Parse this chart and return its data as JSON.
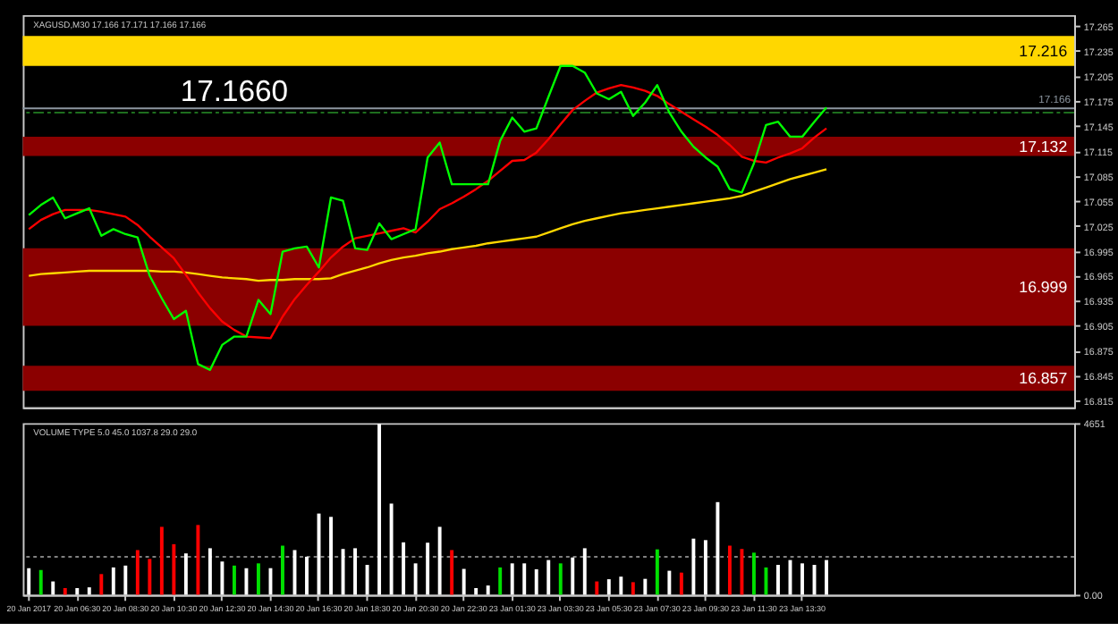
{
  "chart_data": [
    {
      "type": "line",
      "title": "XAGUSD,M30 17.166 17.171 17.166 17.166",
      "annotations": [
        "17.1660"
      ],
      "categories": [
        null,
        null,
        null,
        null,
        null,
        null,
        null,
        null,
        null,
        null,
        null,
        null,
        null,
        null,
        null,
        null,
        null,
        null,
        null,
        null,
        null,
        null,
        null,
        null,
        null,
        null,
        null,
        null,
        null,
        null,
        null,
        null,
        null,
        null,
        null,
        null,
        null,
        null,
        null,
        null,
        null,
        null,
        null,
        null,
        null,
        null,
        null,
        null,
        null,
        null,
        null,
        null,
        null,
        null,
        null,
        null,
        null,
        null,
        null,
        null,
        null,
        null,
        null,
        null,
        null,
        null,
        null,
        null,
        null,
        null,
        null,
        null,
        null,
        null,
        null,
        null,
        null,
        null,
        null,
        null,
        null,
        null,
        null,
        null,
        null,
        null,
        null
      ],
      "ylim": [
        16.807,
        17.278
      ],
      "yticks": [
        16.815,
        16.845,
        16.875,
        16.905,
        16.935,
        16.965,
        16.995,
        17.025,
        17.055,
        17.085,
        17.115,
        17.145,
        17.175,
        17.205,
        17.235,
        17.265
      ],
      "tick_labels": "y",
      "grid": false,
      "legend": false,
      "series": [
        {
          "color": "#ffd700",
          "values": [
            16.965,
            16.967,
            16.968,
            16.969,
            16.97,
            16.971,
            16.971,
            16.971,
            16.971,
            16.971,
            16.971,
            16.97,
            16.97,
            16.969,
            16.967,
            16.965,
            16.963,
            16.962,
            16.961,
            16.959,
            16.96,
            16.96,
            16.961,
            16.961,
            16.961,
            16.962,
            16.967,
            16.971,
            16.975,
            16.98,
            16.984,
            16.987,
            16.989,
            16.992,
            16.994,
            16.997,
            16.999,
            17.001,
            17.004,
            17.006,
            17.008,
            17.01,
            17.012,
            17.017,
            17.022,
            17.027,
            17.031,
            17.034,
            17.037,
            17.04,
            17.042,
            17.044,
            17.046,
            17.048,
            17.05,
            17.052,
            17.054,
            17.056,
            17.058,
            17.061,
            17.066,
            17.071,
            17.076,
            17.081,
            17.085,
            17.089,
            17.093,
            null,
            null,
            null,
            null,
            null,
            null,
            null,
            null,
            null,
            null,
            null,
            null,
            null,
            null,
            null,
            null,
            null,
            null,
            null,
            null
          ]
        },
        {
          "color": "#ff0000",
          "values": [
            17.021,
            17.032,
            17.039,
            17.044,
            17.044,
            17.044,
            17.042,
            17.039,
            17.036,
            17.026,
            17.012,
            16.999,
            16.986,
            16.966,
            16.945,
            16.926,
            16.91,
            16.9,
            16.892,
            16.891,
            16.89,
            16.916,
            16.937,
            16.954,
            16.97,
            16.987,
            17.0,
            17.01,
            17.013,
            17.016,
            17.019,
            17.022,
            17.017,
            17.03,
            17.045,
            17.052,
            17.06,
            17.069,
            17.079,
            17.091,
            17.103,
            17.104,
            17.113,
            17.129,
            17.147,
            17.164,
            17.175,
            17.185,
            17.19,
            17.194,
            17.191,
            17.187,
            17.181,
            17.171,
            17.162,
            17.153,
            17.144,
            17.134,
            17.122,
            17.108,
            17.103,
            17.101,
            17.107,
            17.112,
            17.118,
            17.131,
            17.142,
            null,
            null,
            null,
            null,
            null,
            null,
            null,
            null,
            null,
            null,
            null,
            null,
            null,
            null,
            null,
            null,
            null,
            null,
            null,
            null
          ]
        },
        {
          "color": "#00ff00",
          "values": [
            17.038,
            17.05,
            17.059,
            17.034,
            17.04,
            17.046,
            17.013,
            17.021,
            17.015,
            17.011,
            16.965,
            16.938,
            16.913,
            16.923,
            16.859,
            16.852,
            16.882,
            16.892,
            16.892,
            16.936,
            16.919,
            16.994,
            16.998,
            17.0,
            16.975,
            17.059,
            17.055,
            16.998,
            16.996,
            17.028,
            17.009,
            17.015,
            17.021,
            17.107,
            17.125,
            17.075,
            17.075,
            17.075,
            17.075,
            17.127,
            17.155,
            17.138,
            17.142,
            17.18,
            17.217,
            17.217,
            17.209,
            17.184,
            17.177,
            17.186,
            17.157,
            17.173,
            17.194,
            17.161,
            17.138,
            17.12,
            17.107,
            17.096,
            17.069,
            17.065,
            17.1,
            17.146,
            17.15,
            17.132,
            17.132,
            17.15,
            17.167,
            null,
            null,
            null,
            null,
            null,
            null,
            null,
            null,
            null,
            null,
            null,
            null,
            null,
            null,
            null,
            null,
            null,
            null,
            null,
            null
          ]
        }
      ],
      "ref_lines": [
        {
          "axis": "y",
          "value": 17.166,
          "label": "17.166",
          "color": "#8c96a0",
          "line_style": "solid"
        },
        {
          "axis": "y",
          "value": 17.161,
          "color": "#1e6e1e",
          "line_style": "dashed"
        }
      ],
      "bands": [
        {
          "axis": "y",
          "from": 17.217,
          "to": 17.253,
          "label": "17.216",
          "color": "#ffd700"
        },
        {
          "axis": "y",
          "from": 17.109,
          "to": 17.132,
          "label": "17.132",
          "color": "#8b0000"
        },
        {
          "axis": "y",
          "from": 16.905,
          "to": 16.998,
          "label": "16.999",
          "color": "#8b0000"
        },
        {
          "axis": "y",
          "from": 16.827,
          "to": 16.857,
          "label": "16.857",
          "color": "#8b0000"
        }
      ]
    },
    {
      "type": "bar",
      "title": "VOLUME TYPE 5.0 45.0 1037.8 29.0 29.0",
      "categories": [
        "20 Jan 2017",
        null,
        null,
        null,
        "20 Jan 06:30",
        null,
        null,
        null,
        "20 Jan 08:30",
        null,
        null,
        null,
        "20 Jan 10:30",
        null,
        null,
        null,
        "20 Jan 12:30",
        null,
        null,
        null,
        "20 Jan 14:30",
        null,
        null,
        null,
        "20 Jan 16:30",
        null,
        null,
        null,
        "20 Jan 18:30",
        null,
        null,
        null,
        "20 Jan 20:30",
        null,
        null,
        null,
        "20 Jan 22:30",
        null,
        null,
        null,
        "23 Jan 01:30",
        null,
        null,
        null,
        "23 Jan 03:30",
        null,
        null,
        null,
        "23 Jan 05:30",
        null,
        null,
        null,
        "23 Jan 07:30",
        null,
        null,
        null,
        "23 Jan 09:30",
        null,
        null,
        null,
        "23 Jan 11:30",
        null,
        null,
        null,
        "23 Jan 13:30",
        null,
        null,
        null,
        null,
        null,
        null,
        null,
        null,
        null,
        null,
        null,
        null,
        null,
        null,
        null,
        null,
        null,
        null,
        null,
        null,
        null,
        null
      ],
      "ylim": [
        0,
        4651
      ],
      "yticks": [
        {
          "value": 0,
          "label": "0.00"
        },
        4651
      ],
      "grid": false,
      "legend": false,
      "values": [
        720,
        670,
        360,
        180,
        180,
        200,
        560,
        740,
        790,
        1210,
        970,
        1840,
        1370,
        1120,
        1890,
        1260,
        900,
        790,
        720,
        850,
        720,
        1330,
        1210,
        1030,
        2200,
        2110,
        1240,
        1260,
        810,
        4630,
        2470,
        1420,
        850,
        1410,
        1840,
        1210,
        700,
        180,
        250,
        740,
        850,
        850,
        690,
        940,
        850,
        1010,
        1260,
        360,
        420,
        490,
        340,
        430,
        1230,
        650,
        600,
        1520,
        1480,
        2510,
        1330,
        1240,
        1140,
        740,
        810,
        940,
        850,
        810,
        940,
        null,
        null,
        null,
        null,
        null,
        null,
        null,
        null,
        null,
        null,
        null,
        null,
        null,
        null,
        null,
        null,
        null,
        null,
        null,
        null
      ],
      "colors": [
        "#ffffff",
        "#00e000",
        "#ffffff",
        "#ff0000",
        "#ffffff",
        "#ffffff",
        "#ff0000",
        "#ffffff",
        "#ffffff",
        "#ff0000",
        "#ff0000",
        "#ff0000",
        "#ff0000",
        "#ffffff",
        "#ff0000",
        "#ffffff",
        "#ffffff",
        "#00e000",
        "#ffffff",
        "#00e000",
        "#ffffff",
        "#00e000",
        "#ffffff",
        "#ffffff",
        "#ffffff",
        "#ffffff",
        "#ffffff",
        "#ffffff",
        "#ffffff",
        "#ffffff",
        "#ffffff",
        "#ffffff",
        "#ffffff",
        "#ffffff",
        "#ffffff",
        "#ff0000",
        "#ffffff",
        "#ffffff",
        "#ffffff",
        "#00e000",
        "#ffffff",
        "#ffffff",
        "#ffffff",
        "#ffffff",
        "#00e000",
        "#ffffff",
        "#ffffff",
        "#ff0000",
        "#ffffff",
        "#ffffff",
        "#ff0000",
        "#ffffff",
        "#00e000",
        "#ffffff",
        "#ff0000",
        "#ffffff",
        "#ffffff",
        "#ffffff",
        "#ff0000",
        "#ff0000",
        "#00e000",
        "#00e000",
        "#ffffff",
        "#ffffff",
        "#ffffff",
        "#ffffff",
        "#ffffff",
        "#000000",
        "#000000",
        "#000000",
        "#000000",
        "#000000",
        "#000000",
        "#000000",
        "#000000",
        "#000000",
        "#000000",
        "#000000",
        "#000000",
        "#000000",
        "#000000",
        "#000000",
        "#000000",
        "#000000",
        "#000000",
        "#000000",
        "#000000"
      ],
      "ref_lines": [
        {
          "axis": "y",
          "value": 1030,
          "color": "#808080",
          "line_style": "dotted"
        }
      ]
    }
  ]
}
